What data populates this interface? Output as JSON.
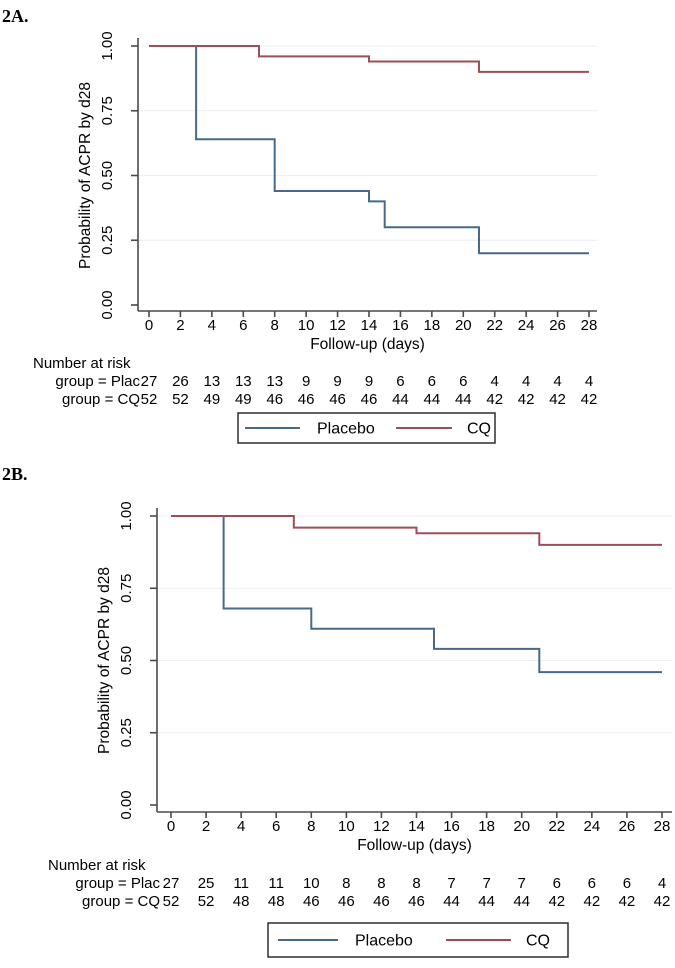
{
  "colors": {
    "placebo": "#46698c",
    "cq": "#9d4e56",
    "grid": "#edf1f5",
    "axis": "#4a4a4a",
    "text": "#000000",
    "legend_border": "#2e2e2e"
  },
  "panels": [
    {
      "label": "2A.",
      "chart_data": {
        "type": "line",
        "step": true,
        "title": "",
        "xlabel": "Follow-up (days)",
        "ylabel": "Probability of ACPR by d28",
        "xlim": [
          0,
          28
        ],
        "ylim": [
          0,
          1
        ],
        "grid": "horizontal",
        "legend_position": "bottom-center",
        "xticks": [
          0,
          2,
          4,
          6,
          8,
          10,
          12,
          14,
          16,
          18,
          20,
          22,
          24,
          26,
          28
        ],
        "yticks": [
          0.0,
          0.25,
          0.5,
          0.75,
          1.0
        ],
        "ytick_labels": [
          "0.00",
          "0.25",
          "0.50",
          "0.75",
          "1.00"
        ],
        "series": [
          {
            "name": "Placebo",
            "color_key": "placebo",
            "points": [
              [
                0,
                1.0
              ],
              [
                3,
                1.0
              ],
              [
                3,
                0.64
              ],
              [
                8,
                0.64
              ],
              [
                8,
                0.44
              ],
              [
                14,
                0.44
              ],
              [
                14,
                0.4
              ],
              [
                15,
                0.4
              ],
              [
                15,
                0.3
              ],
              [
                21,
                0.3
              ],
              [
                21,
                0.2
              ],
              [
                28,
                0.2
              ]
            ]
          },
          {
            "name": "CQ",
            "color_key": "cq",
            "points": [
              [
                0,
                1.0
              ],
              [
                7,
                1.0
              ],
              [
                7,
                0.96
              ],
              [
                14,
                0.96
              ],
              [
                14,
                0.94
              ],
              [
                21,
                0.94
              ],
              [
                21,
                0.9
              ],
              [
                28,
                0.9
              ]
            ]
          }
        ]
      },
      "risk_table": {
        "title": "Number at risk",
        "rows": [
          {
            "label": "group = Plac",
            "values": [
              27,
              26,
              13,
              13,
              13,
              9,
              9,
              9,
              6,
              6,
              6,
              4,
              4,
              4,
              4
            ]
          },
          {
            "label": "group = CQ",
            "values": [
              52,
              52,
              49,
              49,
              46,
              46,
              46,
              46,
              44,
              44,
              44,
              42,
              42,
              42,
              42
            ]
          }
        ]
      },
      "legend": [
        {
          "name": "Placebo",
          "color_key": "placebo"
        },
        {
          "name": "CQ",
          "color_key": "cq"
        }
      ]
    },
    {
      "label": "2B.",
      "chart_data": {
        "type": "line",
        "step": true,
        "title": "",
        "xlabel": "Follow-up (days)",
        "ylabel": "Probability of ACPR by d28",
        "xlim": [
          0,
          28
        ],
        "ylim": [
          0,
          1
        ],
        "grid": "horizontal",
        "legend_position": "bottom-center",
        "xticks": [
          0,
          2,
          4,
          6,
          8,
          10,
          12,
          14,
          16,
          18,
          20,
          22,
          24,
          26,
          28
        ],
        "yticks": [
          0.0,
          0.25,
          0.5,
          0.75,
          1.0
        ],
        "ytick_labels": [
          "0.00",
          "0.25",
          "0.50",
          "0.75",
          "1.00"
        ],
        "series": [
          {
            "name": "Placebo",
            "color_key": "placebo",
            "points": [
              [
                0,
                1.0
              ],
              [
                3,
                1.0
              ],
              [
                3,
                0.68
              ],
              [
                8,
                0.68
              ],
              [
                8,
                0.61
              ],
              [
                15,
                0.61
              ],
              [
                15,
                0.54
              ],
              [
                21,
                0.54
              ],
              [
                21,
                0.46
              ],
              [
                28,
                0.46
              ]
            ]
          },
          {
            "name": "CQ",
            "color_key": "cq",
            "points": [
              [
                0,
                1.0
              ],
              [
                7,
                1.0
              ],
              [
                7,
                0.96
              ],
              [
                14,
                0.96
              ],
              [
                14,
                0.94
              ],
              [
                21,
                0.94
              ],
              [
                21,
                0.9
              ],
              [
                28,
                0.9
              ]
            ]
          }
        ]
      },
      "risk_table": {
        "title": "Number at risk",
        "rows": [
          {
            "label": "group = Plac",
            "values": [
              27,
              25,
              11,
              11,
              10,
              8,
              8,
              8,
              7,
              7,
              7,
              6,
              6,
              6,
              4
            ]
          },
          {
            "label": "group = CQ",
            "values": [
              52,
              52,
              48,
              48,
              46,
              46,
              46,
              46,
              44,
              44,
              44,
              42,
              42,
              42,
              42
            ]
          }
        ]
      },
      "legend": [
        {
          "name": "Placebo",
          "color_key": "placebo"
        },
        {
          "name": "CQ",
          "color_key": "cq"
        }
      ]
    }
  ]
}
